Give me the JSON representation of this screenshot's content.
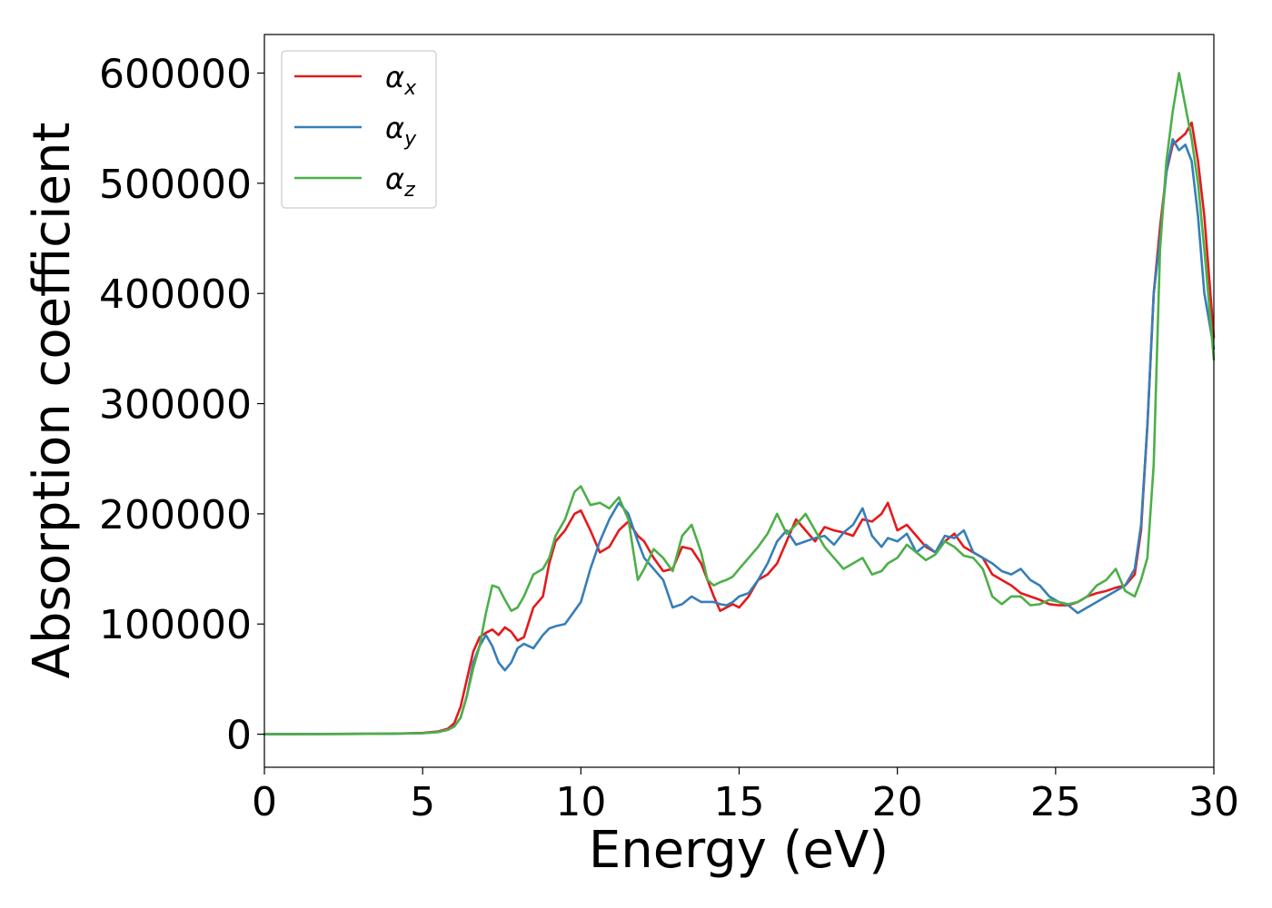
{
  "chart_data": {
    "type": "line",
    "xlabel": "Energy (eV)",
    "ylabel": "Absorption coefficient",
    "xlim": [
      0,
      30
    ],
    "ylim": [
      -30000,
      635000
    ],
    "xticks": [
      0,
      5,
      10,
      15,
      20,
      25,
      30
    ],
    "xtick_labels": [
      "0",
      "5",
      "10",
      "15",
      "20",
      "25",
      "30"
    ],
    "yticks": [
      0,
      100000,
      200000,
      300000,
      400000,
      500000,
      600000
    ],
    "ytick_labels": [
      "0",
      "100000",
      "200000",
      "300000",
      "400000",
      "500000",
      "600000"
    ],
    "grid": false,
    "legend_position": "upper-left",
    "series": [
      {
        "name": "α_x",
        "legend_base": "α",
        "legend_sub": "x",
        "color": "#e41a1c",
        "x": [
          0,
          4,
          5,
          5.5,
          5.8,
          6,
          6.2,
          6.4,
          6.6,
          6.8,
          7,
          7.2,
          7.4,
          7.6,
          7.8,
          8,
          8.2,
          8.5,
          8.8,
          9,
          9.2,
          9.5,
          9.8,
          10,
          10.3,
          10.6,
          10.9,
          11.2,
          11.5,
          11.8,
          12,
          12.3,
          12.6,
          12.9,
          13.2,
          13.5,
          13.8,
          14,
          14.2,
          14.4,
          14.6,
          14.8,
          15,
          15.3,
          15.6,
          15.9,
          16.2,
          16.5,
          16.8,
          17.1,
          17.4,
          17.7,
          18,
          18.3,
          18.6,
          18.9,
          19.2,
          19.5,
          19.7,
          20,
          20.3,
          20.6,
          20.9,
          21.2,
          21.5,
          21.8,
          22.1,
          22.4,
          22.7,
          23,
          23.3,
          23.6,
          23.9,
          24.2,
          24.5,
          24.8,
          25.1,
          25.4,
          25.7,
          26,
          26.3,
          26.6,
          26.9,
          27.2,
          27.5,
          27.7,
          27.9,
          28.1,
          28.3,
          28.5,
          28.7,
          28.9,
          29.1,
          29.3,
          29.5,
          29.7,
          30
        ],
        "y": [
          0,
          500,
          1200,
          2500,
          5000,
          10000,
          25000,
          50000,
          75000,
          88000,
          92000,
          95000,
          90000,
          97000,
          93000,
          85000,
          88000,
          115000,
          125000,
          155000,
          175000,
          185000,
          200000,
          203000,
          185000,
          165000,
          170000,
          185000,
          193000,
          180000,
          175000,
          160000,
          148000,
          150000,
          170000,
          168000,
          155000,
          140000,
          125000,
          112000,
          115000,
          118000,
          115000,
          125000,
          140000,
          145000,
          155000,
          175000,
          195000,
          185000,
          175000,
          188000,
          185000,
          183000,
          180000,
          195000,
          193000,
          200000,
          210000,
          185000,
          190000,
          180000,
          170000,
          165000,
          175000,
          182000,
          170000,
          165000,
          160000,
          145000,
          140000,
          135000,
          128000,
          125000,
          122000,
          118000,
          117000,
          117000,
          120000,
          125000,
          128000,
          130000,
          133000,
          135000,
          145000,
          185000,
          280000,
          400000,
          460000,
          510000,
          535000,
          540000,
          545000,
          555000,
          520000,
          470000,
          360000
        ]
      },
      {
        "name": "α_y",
        "legend_base": "α",
        "legend_sub": "y",
        "color": "#377eb8",
        "x": [
          0,
          4,
          5,
          5.5,
          5.8,
          6,
          6.2,
          6.4,
          6.6,
          6.8,
          7,
          7.2,
          7.4,
          7.6,
          7.8,
          8,
          8.2,
          8.5,
          8.8,
          9,
          9.2,
          9.5,
          9.8,
          10,
          10.3,
          10.6,
          10.9,
          11.2,
          11.5,
          11.8,
          12,
          12.3,
          12.6,
          12.9,
          13.2,
          13.5,
          13.8,
          14,
          14.2,
          14.4,
          14.6,
          14.8,
          15,
          15.3,
          15.6,
          15.9,
          16.2,
          16.5,
          16.8,
          17.1,
          17.4,
          17.7,
          18,
          18.3,
          18.6,
          18.9,
          19.2,
          19.5,
          19.7,
          20,
          20.3,
          20.6,
          20.9,
          21.2,
          21.5,
          21.8,
          22.1,
          22.4,
          22.7,
          23,
          23.3,
          23.6,
          23.9,
          24.2,
          24.5,
          24.8,
          25.1,
          25.4,
          25.7,
          26,
          26.3,
          26.6,
          26.9,
          27.2,
          27.5,
          27.7,
          27.9,
          28.1,
          28.3,
          28.5,
          28.7,
          28.9,
          29.1,
          29.3,
          29.5,
          29.7,
          30
        ],
        "y": [
          0,
          400,
          900,
          2000,
          4000,
          7000,
          15000,
          35000,
          65000,
          80000,
          90000,
          80000,
          65000,
          58000,
          65000,
          78000,
          82000,
          78000,
          90000,
          96000,
          98000,
          100000,
          112000,
          120000,
          150000,
          175000,
          195000,
          210000,
          200000,
          175000,
          160000,
          150000,
          140000,
          115000,
          118000,
          125000,
          120000,
          120000,
          120000,
          118000,
          117000,
          120000,
          125000,
          128000,
          140000,
          155000,
          175000,
          185000,
          172000,
          175000,
          178000,
          180000,
          172000,
          183000,
          190000,
          205000,
          180000,
          170000,
          178000,
          175000,
          182000,
          165000,
          172000,
          165000,
          180000,
          178000,
          185000,
          165000,
          160000,
          155000,
          148000,
          145000,
          150000,
          140000,
          135000,
          125000,
          120000,
          117000,
          110000,
          115000,
          120000,
          125000,
          130000,
          135000,
          150000,
          190000,
          280000,
          400000,
          450000,
          510000,
          540000,
          530000,
          535000,
          520000,
          470000,
          400000,
          350000
        ]
      },
      {
        "name": "α_z",
        "legend_base": "α",
        "legend_sub": "z",
        "color": "#4daf4a",
        "x": [
          0,
          4,
          5,
          5.5,
          5.8,
          6,
          6.2,
          6.4,
          6.6,
          6.8,
          7,
          7.2,
          7.4,
          7.6,
          7.8,
          8,
          8.2,
          8.5,
          8.8,
          9,
          9.2,
          9.5,
          9.8,
          10,
          10.3,
          10.6,
          10.9,
          11.2,
          11.5,
          11.8,
          12,
          12.3,
          12.6,
          12.9,
          13.2,
          13.5,
          13.8,
          14,
          14.2,
          14.4,
          14.6,
          14.8,
          15,
          15.3,
          15.6,
          15.9,
          16.2,
          16.5,
          16.8,
          17.1,
          17.4,
          17.7,
          18,
          18.3,
          18.6,
          18.9,
          19.2,
          19.5,
          19.7,
          20,
          20.3,
          20.6,
          20.9,
          21.2,
          21.5,
          21.8,
          22.1,
          22.4,
          22.7,
          23,
          23.3,
          23.6,
          23.9,
          24.2,
          24.5,
          24.8,
          25.1,
          25.4,
          25.7,
          26,
          26.3,
          26.6,
          26.9,
          27.2,
          27.5,
          27.7,
          27.9,
          28.1,
          28.3,
          28.5,
          28.7,
          28.9,
          29.1,
          29.3,
          29.5,
          29.7,
          30
        ],
        "y": [
          0,
          400,
          900,
          2000,
          4000,
          7000,
          15000,
          35000,
          60000,
          80000,
          110000,
          135000,
          133000,
          122000,
          112000,
          115000,
          125000,
          145000,
          150000,
          160000,
          180000,
          195000,
          220000,
          225000,
          208000,
          210000,
          205000,
          215000,
          195000,
          140000,
          150000,
          168000,
          160000,
          148000,
          180000,
          190000,
          165000,
          140000,
          135000,
          138000,
          140000,
          143000,
          150000,
          160000,
          170000,
          182000,
          200000,
          182000,
          190000,
          200000,
          185000,
          170000,
          160000,
          150000,
          155000,
          160000,
          145000,
          148000,
          155000,
          160000,
          172000,
          165000,
          158000,
          163000,
          175000,
          170000,
          162000,
          160000,
          150000,
          125000,
          118000,
          125000,
          125000,
          117000,
          118000,
          122000,
          120000,
          118000,
          120000,
          125000,
          135000,
          140000,
          150000,
          130000,
          125000,
          140000,
          160000,
          245000,
          440000,
          520000,
          565000,
          600000,
          570000,
          540000,
          500000,
          440000,
          340000
        ]
      }
    ]
  }
}
